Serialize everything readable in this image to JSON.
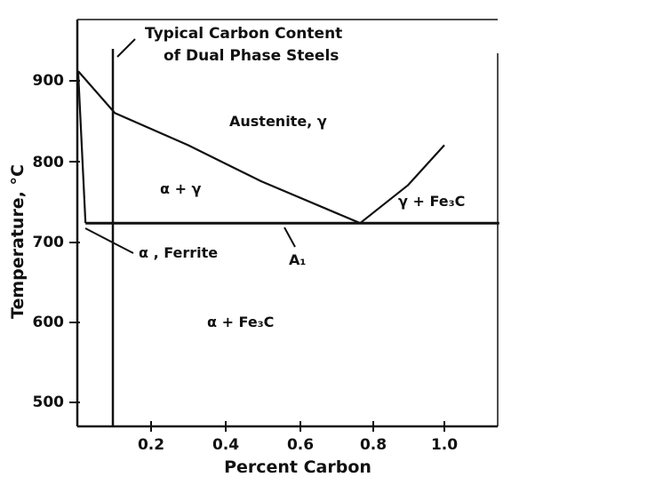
{
  "chart_data": {
    "type": "diagram",
    "xlabel": "Percent Carbon",
    "ylabel": "Temperature, °C",
    "x_ticks": [
      "0.2",
      "0.4",
      "0.6",
      "0.8",
      "1.0"
    ],
    "y_ticks": [
      "900",
      "800",
      "700",
      "600",
      "500"
    ],
    "xlim": [
      0,
      1.15
    ],
    "ylim": [
      470,
      960
    ],
    "annotation": {
      "line1": "Typical Carbon Content",
      "line2": "of Dual Phase Steels",
      "x": 0.1
    },
    "eutectoid_label": "A₁",
    "eutectoid_temperature": 723,
    "eutectoid_carbon": 0.77,
    "phases": {
      "austenite": "Austenite, γ",
      "alpha_gamma": "α + γ",
      "gamma_fe3c": "γ + Fe₃C",
      "ferrite": "α , Ferrite",
      "alpha_fe3c": "α + Fe₃C"
    },
    "boundaries": {
      "a3": [
        [
          0,
          912
        ],
        [
          0.1,
          860
        ],
        [
          0.3,
          820
        ],
        [
          0.5,
          775
        ],
        [
          0.77,
          723
        ]
      ],
      "acm": [
        [
          0.77,
          723
        ],
        [
          0.9,
          770
        ],
        [
          1.0,
          820
        ]
      ],
      "a1": [
        [
          0.02,
          723
        ],
        [
          1.15,
          723
        ]
      ],
      "ferrite_solvus": [
        [
          0.02,
          723
        ],
        [
          0,
          910
        ]
      ]
    }
  }
}
